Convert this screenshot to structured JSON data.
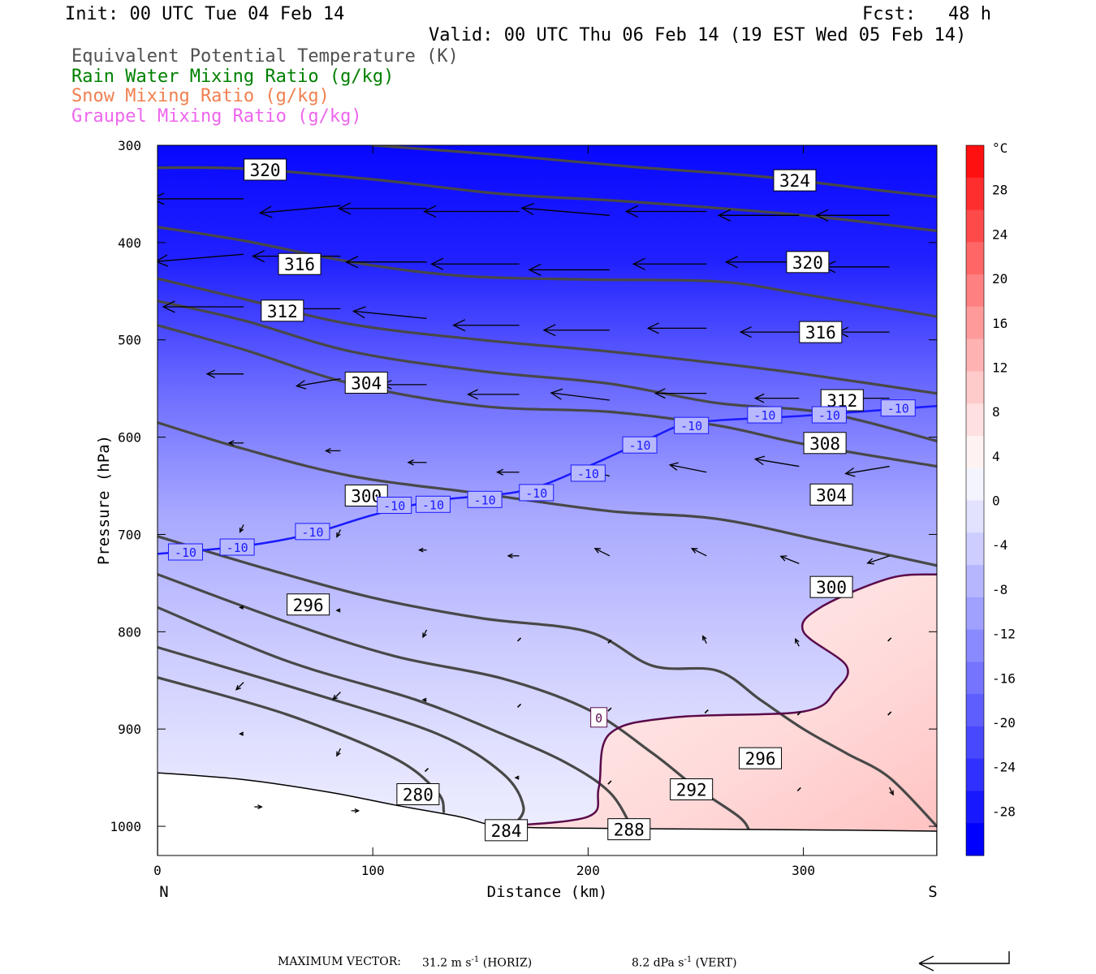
{
  "header": {
    "init": "Init: 00 UTC Tue 04 Feb 14",
    "fcst": "Fcst:   48 h",
    "valid": "Valid: 00 UTC Thu 06 Feb 14 (19 EST Wed 05 Feb 14)"
  },
  "legend": [
    {
      "label": "Equivalent Potential Temperature (K)",
      "color": "#505050"
    },
    {
      "label": "Rain Water Mixing Ratio (g/kg)",
      "color": "#008000"
    },
    {
      "label": "Snow Mixing Ratio (g/kg)",
      "color": "#f08050"
    },
    {
      "label": "Graupel Mixing Ratio (g/kg)",
      "color": "#ee66ee"
    }
  ],
  "footer": {
    "max_vector_label": "MAXIMUM VECTOR:",
    "horiz": "31.2 m s",
    "horiz_unit": "(HORIZ)",
    "vert": "8.2 dPa s",
    "vert_unit": "(VERT)",
    "exp": "-1"
  },
  "chart_data": {
    "type": "cross-section",
    "xlabel": "Distance (km)",
    "ylabel": "Pressure (hPa)",
    "xlim": [
      0,
      362
    ],
    "ylim": [
      1030,
      300
    ],
    "x_ticks": [
      "0",
      "100",
      "200",
      "300"
    ],
    "x_end_labels": [
      "N",
      "S"
    ],
    "y_ticks": [
      "300",
      "400",
      "500",
      "600",
      "700",
      "800",
      "900",
      "1000"
    ],
    "colorbar": {
      "unit": "°C",
      "labels": [
        "28",
        "24",
        "20",
        "16",
        "12",
        "8",
        "4",
        "0",
        "-4",
        "-8",
        "-12",
        "-16",
        "-20",
        "-24",
        "-28"
      ],
      "colors": [
        "#ff1010",
        "#ff2e2e",
        "#ff4a4a",
        "#ff6666",
        "#ff8080",
        "#ff9a9a",
        "#ffb2b2",
        "#ffcaca",
        "#ffe0e0",
        "#fff2f2",
        "#f4f4ff",
        "#e2e2ff",
        "#cdcdff",
        "#b6b6ff",
        "#a0a0ff",
        "#8a8aff",
        "#7474ff",
        "#5e5eff",
        "#4848ff",
        "#3030ff",
        "#1818ff",
        "#0000ff"
      ]
    },
    "theta_e_contours": [
      {
        "label": "320",
        "pts": [
          [
            0,
            323
          ],
          [
            40,
            324
          ],
          [
            100,
            335
          ],
          [
            160,
            350
          ],
          [
            220,
            358
          ],
          [
            300,
            372
          ],
          [
            362,
            388
          ]
        ]
      },
      {
        "label": "324",
        "pts": [
          [
            100,
            300
          ],
          [
            160,
            310
          ],
          [
            220,
            322
          ],
          [
            280,
            332
          ],
          [
            330,
            345
          ],
          [
            362,
            353
          ]
        ]
      },
      {
        "label": "316",
        "pts": [
          [
            0,
            384
          ],
          [
            40,
            398
          ],
          [
            90,
            420
          ],
          [
            140,
            434
          ],
          [
            200,
            438
          ],
          [
            260,
            440
          ],
          [
            300,
            453
          ],
          [
            362,
            476
          ]
        ]
      },
      {
        "label": "312",
        "pts": [
          [
            0,
            437
          ],
          [
            40,
            458
          ],
          [
            90,
            484
          ],
          [
            150,
            500
          ],
          [
            210,
            512
          ],
          [
            260,
            524
          ],
          [
            300,
            535
          ],
          [
            362,
            555
          ]
        ]
      },
      {
        "label": "304",
        "pts": [
          [
            0,
            485
          ],
          [
            40,
            510
          ],
          [
            90,
            545
          ],
          [
            150,
            568
          ],
          [
            210,
            574
          ],
          [
            260,
            588
          ],
          [
            300,
            607
          ],
          [
            362,
            630
          ]
        ]
      },
      {
        "label": "308",
        "pts": [
          [
            0,
            460
          ],
          [
            40,
            480
          ],
          [
            90,
            512
          ],
          [
            150,
            532
          ],
          [
            210,
            545
          ],
          [
            260,
            565
          ],
          [
            310,
            575
          ],
          [
            362,
            604
          ]
        ]
      },
      {
        "label": "300",
        "pts": [
          [
            0,
            585
          ],
          [
            40,
            612
          ],
          [
            90,
            640
          ],
          [
            150,
            658
          ],
          [
            210,
            676
          ],
          [
            260,
            684
          ],
          [
            310,
            707
          ],
          [
            362,
            732
          ]
        ]
      },
      {
        "label": "296",
        "pts": [
          [
            0,
            702
          ],
          [
            50,
            735
          ],
          [
            100,
            765
          ],
          [
            150,
            786
          ],
          [
            200,
            800
          ],
          [
            230,
            835
          ],
          [
            260,
            840
          ],
          [
            280,
            870
          ],
          [
            300,
            900
          ],
          [
            320,
            925
          ],
          [
            340,
            950
          ],
          [
            362,
            1000
          ]
        ]
      },
      {
        "label": "292",
        "pts": [
          [
            0,
            741
          ],
          [
            60,
            790
          ],
          [
            110,
            825
          ],
          [
            160,
            848
          ],
          [
            200,
            880
          ],
          [
            230,
            925
          ],
          [
            250,
            960
          ],
          [
            270,
            990
          ],
          [
            275,
            1005
          ]
        ]
      },
      {
        "label": "288",
        "pts": [
          [
            0,
            775
          ],
          [
            60,
            830
          ],
          [
            120,
            870
          ],
          [
            160,
            905
          ],
          [
            190,
            935
          ],
          [
            210,
            965
          ],
          [
            220,
            1000
          ]
        ]
      },
      {
        "label": "284",
        "pts": [
          [
            0,
            816
          ],
          [
            70,
            862
          ],
          [
            130,
            905
          ],
          [
            160,
            945
          ],
          [
            170,
            980
          ],
          [
            165,
            1000
          ]
        ]
      },
      {
        "label": "280",
        "pts": [
          [
            0,
            847
          ],
          [
            60,
            885
          ],
          [
            110,
            930
          ],
          [
            130,
            965
          ],
          [
            133,
            985
          ]
        ]
      }
    ],
    "isotherms": [
      {
        "label": "-10",
        "pts": [
          [
            0,
            720
          ],
          [
            40,
            712
          ],
          [
            70,
            700
          ],
          [
            100,
            680
          ],
          [
            130,
            665
          ],
          [
            170,
            655
          ],
          [
            200,
            630
          ],
          [
            230,
            600
          ],
          [
            250,
            585
          ],
          [
            300,
            578
          ],
          [
            362,
            568
          ]
        ]
      },
      {
        "label": "0",
        "pts": [
          [
            160,
            1000
          ],
          [
            200,
            990
          ],
          [
            205,
            960
          ],
          [
            210,
            905
          ],
          [
            240,
            888
          ],
          [
            300,
            882
          ],
          [
            315,
            860
          ],
          [
            320,
            835
          ],
          [
            300,
            800
          ],
          [
            308,
            775
          ],
          [
            340,
            745
          ],
          [
            362,
            741
          ]
        ]
      }
    ],
    "vectors": [
      {
        "x": 40,
        "p": 355,
        "u": -25,
        "w": 0
      },
      {
        "x": 85,
        "p": 362,
        "u": -22,
        "w": -1
      },
      {
        "x": 125,
        "p": 365,
        "u": -24,
        "w": 0
      },
      {
        "x": 168,
        "p": 368,
        "u": -26,
        "w": 0
      },
      {
        "x": 210,
        "p": 372,
        "u": -24,
        "w": 1
      },
      {
        "x": 255,
        "p": 368,
        "u": -22,
        "w": 0
      },
      {
        "x": 298,
        "p": 372,
        "u": -22,
        "w": 0
      },
      {
        "x": 340,
        "p": 372,
        "u": -20,
        "w": 0
      },
      {
        "x": 40,
        "p": 412,
        "u": -24,
        "w": -1
      },
      {
        "x": 85,
        "p": 414,
        "u": -24,
        "w": 0
      },
      {
        "x": 125,
        "p": 420,
        "u": -22,
        "w": 0
      },
      {
        "x": 168,
        "p": 422,
        "u": -24,
        "w": 0
      },
      {
        "x": 210,
        "p": 428,
        "u": -22,
        "w": 0
      },
      {
        "x": 255,
        "p": 422,
        "u": -20,
        "w": 0
      },
      {
        "x": 298,
        "p": 420,
        "u": -20,
        "w": 0
      },
      {
        "x": 340,
        "p": 425,
        "u": -18,
        "w": 0
      },
      {
        "x": 40,
        "p": 466,
        "u": -22,
        "w": 0
      },
      {
        "x": 85,
        "p": 468,
        "u": -20,
        "w": 0
      },
      {
        "x": 125,
        "p": 478,
        "u": -20,
        "w": 1
      },
      {
        "x": 168,
        "p": 485,
        "u": -18,
        "w": 0
      },
      {
        "x": 210,
        "p": 490,
        "u": -18,
        "w": 0
      },
      {
        "x": 255,
        "p": 488,
        "u": -16,
        "w": 0
      },
      {
        "x": 298,
        "p": 492,
        "u": -16,
        "w": 0
      },
      {
        "x": 340,
        "p": 492,
        "u": -14,
        "w": 0
      },
      {
        "x": 40,
        "p": 535,
        "u": -10,
        "w": 0
      },
      {
        "x": 85,
        "p": 540,
        "u": -12,
        "w": -1
      },
      {
        "x": 125,
        "p": 546,
        "u": -12,
        "w": 0
      },
      {
        "x": 168,
        "p": 556,
        "u": -14,
        "w": 0
      },
      {
        "x": 210,
        "p": 562,
        "u": -16,
        "w": 1
      },
      {
        "x": 255,
        "p": 555,
        "u": -14,
        "w": 0
      },
      {
        "x": 298,
        "p": 560,
        "u": -12,
        "w": 0
      },
      {
        "x": 340,
        "p": 560,
        "u": -12,
        "w": 0
      },
      {
        "x": 40,
        "p": 606,
        "u": -4,
        "w": 0
      },
      {
        "x": 85,
        "p": 614,
        "u": -4,
        "w": 0
      },
      {
        "x": 125,
        "p": 626,
        "u": -5,
        "w": 0
      },
      {
        "x": 168,
        "p": 636,
        "u": -6,
        "w": 0
      },
      {
        "x": 210,
        "p": 640,
        "u": -8,
        "w": 1
      },
      {
        "x": 255,
        "p": 636,
        "u": -10,
        "w": 1
      },
      {
        "x": 298,
        "p": 630,
        "u": -12,
        "w": 1
      },
      {
        "x": 340,
        "p": 630,
        "u": -12,
        "w": -1
      },
      {
        "x": 40,
        "p": 690,
        "u": -1,
        "w": -1
      },
      {
        "x": 85,
        "p": 695,
        "u": -1,
        "w": -1
      },
      {
        "x": 125,
        "p": 716,
        "u": -2,
        "w": 0
      },
      {
        "x": 168,
        "p": 722,
        "u": -3,
        "w": 0
      },
      {
        "x": 210,
        "p": 722,
        "u": -4,
        "w": 1
      },
      {
        "x": 255,
        "p": 722,
        "u": -4,
        "w": 1
      },
      {
        "x": 298,
        "p": 730,
        "u": -5,
        "w": 1
      },
      {
        "x": 340,
        "p": 722,
        "u": -6,
        "w": -1
      },
      {
        "x": 40,
        "p": 775,
        "u": -1,
        "w": 0
      },
      {
        "x": 85,
        "p": 778,
        "u": -1,
        "w": 0
      },
      {
        "x": 125,
        "p": 798,
        "u": -1,
        "w": -1
      },
      {
        "x": 168,
        "p": 808,
        "u": 0,
        "w": 0
      },
      {
        "x": 210,
        "p": 810,
        "u": 0,
        "w": 0
      },
      {
        "x": 255,
        "p": 812,
        "u": -1,
        "w": 1
      },
      {
        "x": 298,
        "p": 815,
        "u": -1,
        "w": 1
      },
      {
        "x": 340,
        "p": 808,
        "u": 0,
        "w": 0
      },
      {
        "x": 40,
        "p": 852,
        "u": -2,
        "w": -1
      },
      {
        "x": 85,
        "p": 862,
        "u": -2,
        "w": -1
      },
      {
        "x": 125,
        "p": 870,
        "u": -1,
        "w": 0
      },
      {
        "x": 168,
        "p": 876,
        "u": 0,
        "w": 0
      },
      {
        "x": 210,
        "p": 880,
        "u": 0,
        "w": 0
      },
      {
        "x": 255,
        "p": 882,
        "u": 0,
        "w": 0
      },
      {
        "x": 298,
        "p": 884,
        "u": 0,
        "w": 0
      },
      {
        "x": 340,
        "p": 884,
        "u": 0,
        "w": 0
      },
      {
        "x": 40,
        "p": 905,
        "u": -1,
        "w": 0
      },
      {
        "x": 85,
        "p": 920,
        "u": -1,
        "w": -1
      },
      {
        "x": 125,
        "p": 942,
        "u": 0,
        "w": 0
      },
      {
        "x": 168,
        "p": 950,
        "u": -1,
        "w": 0
      },
      {
        "x": 210,
        "p": 955,
        "u": 0,
        "w": 0
      },
      {
        "x": 255,
        "p": 960,
        "u": 0,
        "w": 0
      },
      {
        "x": 298,
        "p": 962,
        "u": 0,
        "w": 0
      },
      {
        "x": 340,
        "p": 960,
        "u": 1,
        "w": -1
      },
      {
        "x": 45,
        "p": 980,
        "u": 2,
        "w": 0
      },
      {
        "x": 90,
        "p": 984,
        "u": 2,
        "w": 0
      }
    ]
  }
}
